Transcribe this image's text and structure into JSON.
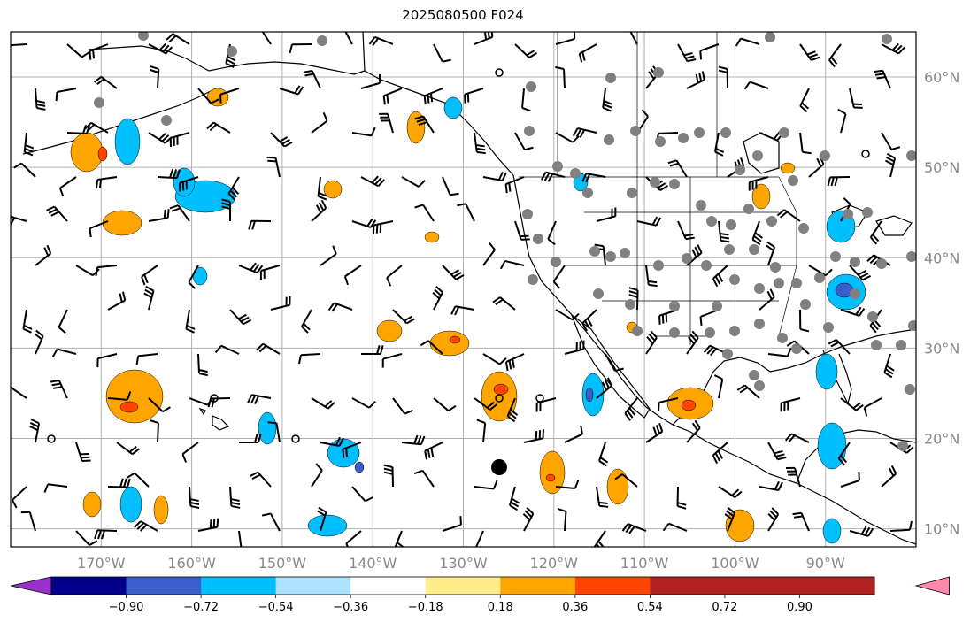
{
  "title": "2025080500 F024",
  "map": {
    "lat_labels": [
      "60°N",
      "50°N",
      "40°N",
      "30°N",
      "20°N",
      "10°N"
    ],
    "lat_values": [
      60,
      50,
      40,
      30,
      20,
      10
    ],
    "lon_labels": [
      "170°W",
      "160°W",
      "150°W",
      "140°W",
      "130°W",
      "120°W",
      "110°W",
      "100°W",
      "90°W"
    ],
    "lon_values": [
      -170,
      -160,
      -150,
      -140,
      -130,
      -120,
      -110,
      -100,
      -90
    ],
    "grid": true
  },
  "colorbar": {
    "boundaries": [
      "−0.90",
      "−0.72",
      "−0.54",
      "−0.36",
      "−0.18",
      "0.18",
      "0.36",
      "0.54",
      "0.72",
      "0.90"
    ],
    "colors": [
      "#9932cc",
      "#00008b",
      "#3a5fcd",
      "#00bfff",
      "#aee1ff",
      "#ffffff",
      "#ffec8b",
      "#ffa500",
      "#ff4500",
      "#b22222",
      "#ff88aa"
    ]
  },
  "colors": {
    "grid": "#b0b0b0",
    "coast": "#000000",
    "station": "#808080",
    "text_gray": "#888888"
  }
}
